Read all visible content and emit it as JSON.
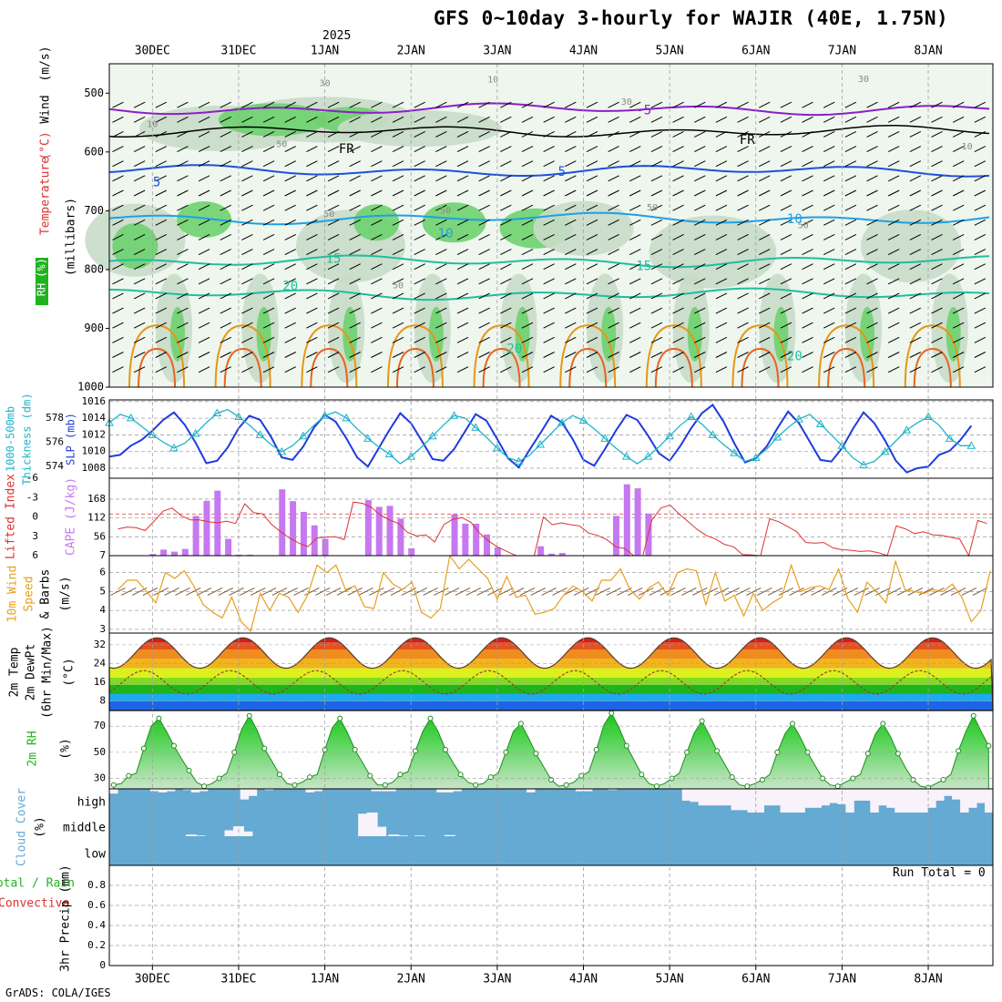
{
  "header": {
    "title": "GFS 0~10day 3-hourly for WAJIR (40E, 1.75N)",
    "year_label": "2025",
    "credit": "GrADS: COLA/IGES",
    "run_total": "Run Total = 0"
  },
  "colors": {
    "frame": "#000000",
    "grid": "#a0a0a0",
    "slp": "#1e3cdc",
    "thickness": "#1eb4c8",
    "cape": "#c678f0",
    "lifted": "#dc3232",
    "wind10m": "#e6a01e",
    "barbs": "#7a5a3c",
    "rh": "#1eb41e",
    "cloud": "#64aad2",
    "cloud_empty": "#f8f2fa",
    "temp_purple": "#8c1ec8",
    "temp_black": "#000000",
    "temp_blue": "#1e50dc",
    "temp_lightblue": "#1ea0e6",
    "temp_teal": "#1ebe9e",
    "temp_orange": "#e69614",
    "temp_darkorange": "#e6641e",
    "temp_magenta": "#dc1e8c"
  },
  "chart_data": [
    {
      "type": "contour",
      "panel": "upper-air",
      "y_axis_labels": [
        "Wind",
        "(m/s)",
        "Temperature",
        "(°C)",
        "RH",
        "(%)",
        "(millibars)"
      ],
      "ylim": [
        1000,
        450
      ],
      "yticks": [
        500,
        600,
        700,
        800,
        900,
        1000
      ],
      "temperature_contours": [
        {
          "value": "-5",
          "pressure": 527,
          "color": "purple"
        },
        {
          "value": "FR",
          "pressure": 565,
          "color": "black"
        },
        {
          "value": "5",
          "pressure": 632,
          "color": "blue"
        },
        {
          "value": "10",
          "pressure": 713,
          "color": "lightblue"
        },
        {
          "value": "15",
          "pressure": 786,
          "color": "teal"
        },
        {
          "value": "20",
          "pressure": 842,
          "color": "teal"
        }
      ],
      "contour_labels": [
        {
          "text": "-5",
          "day": 6.2,
          "pressure": 530,
          "color": "purple"
        },
        {
          "text": "FR",
          "day": 2.75,
          "pressure": 596,
          "color": "black"
        },
        {
          "text": "FR",
          "day": 7.4,
          "pressure": 580,
          "color": "black"
        },
        {
          "text": "5",
          "day": 0.55,
          "pressure": 652,
          "color": "blue"
        },
        {
          "text": "5",
          "day": 5.25,
          "pressure": 634,
          "color": "blue"
        },
        {
          "text": "10",
          "day": 3.9,
          "pressure": 740,
          "color": "lightblue"
        },
        {
          "text": "10",
          "day": 7.95,
          "pressure": 715,
          "color": "lightblue"
        },
        {
          "text": "15",
          "day": 2.6,
          "pressure": 782,
          "color": "teal"
        },
        {
          "text": "15",
          "day": 6.2,
          "pressure": 795,
          "color": "teal"
        },
        {
          "text": "20",
          "day": 2.1,
          "pressure": 829,
          "color": "teal"
        },
        {
          "text": "20",
          "day": 4.7,
          "pressure": 936,
          "color": "teal"
        },
        {
          "text": "20",
          "day": 7.95,
          "pressure": 948,
          "color": "teal"
        }
      ],
      "rh_labels": [
        {
          "text": "30",
          "day": 2.5,
          "pressure": 483
        },
        {
          "text": "10",
          "day": 4.45,
          "pressure": 477
        },
        {
          "text": "30",
          "day": 6.0,
          "pressure": 515
        },
        {
          "text": "30",
          "day": 8.75,
          "pressure": 476
        },
        {
          "text": "10",
          "day": 0.5,
          "pressure": 553
        },
        {
          "text": "10",
          "day": 9.95,
          "pressure": 591
        },
        {
          "text": "50",
          "day": 2.0,
          "pressure": 587
        },
        {
          "text": "50",
          "day": 2.55,
          "pressure": 706
        },
        {
          "text": "50",
          "day": 3.9,
          "pressure": 700
        },
        {
          "text": "50",
          "day": 6.3,
          "pressure": 695
        },
        {
          "text": "50",
          "day": 8.05,
          "pressure": 725
        },
        {
          "text": "50",
          "day": 3.35,
          "pressure": 827
        }
      ]
    },
    {
      "type": "line",
      "panel": "slp-thickness",
      "ylabel_left": "1000-500mb Thickness (dm)",
      "ylabel_right": "SLP (mb)",
      "slp_ticks": [
        1008,
        1010,
        1012,
        1014,
        1016
      ],
      "thickness_ticks": [
        574,
        576,
        578
      ],
      "slp_ylim": [
        1006.8,
        1016.2
      ],
      "x_start_day": 0.5,
      "x_step_days": 0.125,
      "series": [
        {
          "name": "SLP",
          "values": [
            1009.4,
            1009.6,
            1010.7,
            1011.4,
            1012.5,
            1013.8,
            1014.7,
            1013.2,
            1011.1,
            1008.6,
            1008.9,
            1010.5,
            1012.8,
            1014.3,
            1013.8,
            1011.8,
            1009.3,
            1009.0,
            1010.6,
            1012.9,
            1014.4,
            1013.6,
            1011.6,
            1009.3,
            1008.2,
            1010.4,
            1012.6,
            1014.6,
            1013.4,
            1011.3,
            1009.1,
            1008.9,
            1010.3,
            1012.4,
            1014.5,
            1013.7,
            1011.5,
            1009.2,
            1008.1,
            1010.2,
            1012.2,
            1014.3,
            1013.5,
            1011.5,
            1009.0,
            1008.3,
            1010.3,
            1012.5,
            1014.4,
            1013.8,
            1011.9,
            1009.8,
            1008.9,
            1010.7,
            1012.8,
            1014.6,
            1015.6,
            1013.6,
            1011.0,
            1008.7,
            1009.2,
            1010.6,
            1012.8,
            1014.8,
            1013.4,
            1011.2,
            1009.0,
            1008.8,
            1010.4,
            1012.7,
            1014.7,
            1013.4,
            1011.3,
            1008.9,
            1007.5,
            1008.0,
            1008.2,
            1009.6,
            1010.1,
            1011.4,
            1013.1
          ]
        },
        {
          "name": "Thickness",
          "values": [
            577.6,
            578.3,
            578.0,
            577.3,
            576.6,
            576.0,
            575.5,
            575.9,
            576.7,
            577.6,
            578.4,
            578.7,
            578.1,
            577.4,
            576.6,
            575.8,
            575.2,
            575.7,
            576.5,
            577.4,
            578.2,
            578.5,
            578.0,
            577.1,
            576.3,
            575.6,
            575.0,
            574.2,
            574.8,
            575.6,
            576.5,
            577.4,
            578.2,
            578.0,
            577.2,
            576.4,
            575.5,
            574.7,
            574.4,
            574.9,
            575.8,
            576.7,
            577.6,
            578.2,
            577.8,
            577.1,
            576.3,
            575.5,
            574.8,
            574.2,
            574.8,
            575.6,
            576.5,
            577.4,
            578.1,
            577.5,
            576.6,
            575.8,
            575.1,
            574.4,
            574.7,
            575.4,
            576.4,
            577.2,
            577.9,
            578.3,
            577.5,
            576.6,
            575.7,
            574.7,
            574.1,
            574.4,
            575.2,
            576.1,
            577.0,
            577.6,
            578.1,
            577.4,
            576.3,
            575.7,
            575.7
          ]
        }
      ]
    },
    {
      "type": "bar",
      "panel": "cape-lifted-index",
      "ylabel_left": "Lifted Index",
      "ylabel_right": "CAPE (J/kg)",
      "cape_ticks": [
        56,
        112,
        168
      ],
      "lifted_ticks": [
        "-6",
        "-3",
        "0",
        "3",
        "6"
      ],
      "cape_ylim": [
        0,
        230
      ],
      "lifted_ylim": [
        -6,
        7
      ],
      "lifted_tick_right": "7",
      "cape_bars": [
        {
          "day": 0.5,
          "value": 5
        },
        {
          "day": 0.625,
          "value": 18
        },
        {
          "day": 0.75,
          "value": 12
        },
        {
          "day": 0.875,
          "value": 20
        },
        {
          "day": 1.0,
          "value": 118
        },
        {
          "day": 1.125,
          "value": 163
        },
        {
          "day": 1.25,
          "value": 193
        },
        {
          "day": 1.375,
          "value": 50
        },
        {
          "day": 1.5,
          "value": 3
        },
        {
          "day": 1.625,
          "value": 3
        },
        {
          "day": 2.0,
          "value": 197
        },
        {
          "day": 2.125,
          "value": 162
        },
        {
          "day": 2.25,
          "value": 130
        },
        {
          "day": 2.375,
          "value": 90
        },
        {
          "day": 2.5,
          "value": 50
        },
        {
          "day": 3.0,
          "value": 165
        },
        {
          "day": 3.125,
          "value": 145
        },
        {
          "day": 3.25,
          "value": 148
        },
        {
          "day": 3.375,
          "value": 110
        },
        {
          "day": 3.5,
          "value": 22
        },
        {
          "day": 4.0,
          "value": 123
        },
        {
          "day": 4.125,
          "value": 95
        },
        {
          "day": 4.25,
          "value": 95
        },
        {
          "day": 4.375,
          "value": 63
        },
        {
          "day": 4.5,
          "value": 25
        },
        {
          "day": 5.0,
          "value": 28
        },
        {
          "day": 5.125,
          "value": 6
        },
        {
          "day": 5.25,
          "value": 8
        },
        {
          "day": 5.875,
          "value": 118
        },
        {
          "day": 6.0,
          "value": 212
        },
        {
          "day": 6.125,
          "value": 200
        },
        {
          "day": 6.25,
          "value": 125
        }
      ],
      "lifted_index": [
        2.5,
        2.2,
        2.3,
        2.8,
        1.2,
        -0.5,
        -1.0,
        0.3,
        1.0,
        1.0,
        1.3,
        1.5,
        1.2,
        1.6,
        -1.7,
        -0.2,
        0.0,
        1.8,
        3.0,
        4.1,
        4.9,
        5.5,
        4.0,
        3.9,
        3.8,
        4.3,
        -2.0,
        -1.8,
        -1.1,
        0.2,
        1.0,
        1.6,
        3.1,
        3.7,
        3.5,
        4.7,
        1.8,
        0.9,
        0.6,
        1.4,
        3.3,
        4.6,
        5.6,
        6.3,
        7.2,
        7.9,
        9.5,
        0.5,
        1.8,
        1.5,
        1.8,
        2.0,
        3.2,
        3.6,
        4.3,
        5.5,
        5.8,
        7.9,
        9.0,
        1.0,
        -1.0,
        -1.5,
        0.0,
        1.3,
        2.6,
        3.6,
        4.2,
        5.1,
        5.5,
        6.8,
        6.9,
        9.2,
        0.8,
        1.3,
        2.1,
        3.0,
        4.8,
        4.9,
        4.8,
        5.7,
        6.0,
        6.1,
        6.3,
        6.2,
        6.5,
        9.0,
        2.0,
        2.5,
        3.3,
        3.0,
        3.5,
        3.6,
        3.9,
        4.2,
        9.1,
        1.1,
        1.6
      ]
    },
    {
      "type": "line",
      "panel": "wind-10m",
      "ylabel": "10m Wind Speed & Barbs (m/s)",
      "yticks": [
        3,
        4,
        5,
        6
      ],
      "ylim": [
        2.8,
        6.9
      ],
      "values": [
        5.1,
        5.6,
        5.6,
        5.0,
        4.4,
        6.0,
        5.7,
        6.1,
        5.3,
        4.3,
        3.9,
        3.6,
        4.7,
        3.4,
        2.9,
        4.9,
        4.0,
        4.9,
        4.7,
        3.9,
        4.8,
        6.4,
        6.0,
        6.4,
        5.1,
        5.3,
        4.2,
        4.1,
        6.0,
        5.4,
        5.1,
        5.5,
        3.9,
        3.6,
        4.1,
        6.9,
        6.2,
        6.7,
        6.2,
        5.7,
        4.6,
        5.8,
        4.7,
        4.8,
        3.8,
        3.9,
        4.1,
        4.8,
        5.3,
        5.0,
        4.5,
        5.6,
        5.6,
        6.2,
        5.1,
        4.6,
        5.2,
        5.5,
        4.8,
        6.0,
        6.2,
        6.1,
        4.3,
        6.0,
        4.5,
        4.8,
        3.7,
        4.9,
        4.0,
        4.4,
        4.7,
        6.4,
        5.0,
        5.2,
        5.3,
        5.1,
        6.2,
        4.6,
        3.9,
        5.5,
        5.0,
        4.4,
        6.6,
        5.1,
        5.0,
        4.9,
        5.1,
        5.0,
        5.4,
        4.7,
        3.4,
        4.0,
        6.1
      ]
    },
    {
      "type": "area",
      "panel": "2m-temp",
      "ylabel": "2m Temp 2m DewPt (6hr Min/Max) (°C)",
      "yticks": [
        8,
        16,
        24,
        32
      ],
      "ylim": [
        4,
        37
      ],
      "temp_band_colors": [
        "#1e64e6",
        "#1eaaf0",
        "#1eb41e",
        "#82dc1e",
        "#dcf01e",
        "#f0b41e",
        "#f08c1e",
        "#e6501e",
        "#d21e1e"
      ],
      "temp_band_edges": [
        4,
        8,
        11,
        15,
        18,
        22,
        26,
        30,
        33,
        36
      ],
      "temp_daily_min": 22,
      "temp_daily_max": 35,
      "dewpoint_min": 11,
      "dewpoint_max": 21
    },
    {
      "type": "area",
      "panel": "2m-rh",
      "ylabel": "2m RH (%)",
      "yticks": [
        30,
        50,
        70
      ],
      "ylim": [
        22,
        82
      ],
      "values": [
        25,
        26,
        32,
        34,
        53,
        70,
        76,
        66,
        55,
        45,
        36,
        27,
        24,
        26,
        30,
        34,
        50,
        68,
        78,
        67,
        53,
        43,
        33,
        26,
        25,
        27,
        31,
        33,
        52,
        69,
        76,
        65,
        52,
        42,
        32,
        25,
        25,
        27,
        33,
        35,
        51,
        66,
        76,
        66,
        52,
        42,
        33,
        27,
        25,
        26,
        31,
        34,
        50,
        66,
        72,
        61,
        49,
        39,
        29,
        24,
        25,
        27,
        32,
        35,
        52,
        71,
        80,
        69,
        55,
        44,
        33,
        26,
        24,
        26,
        30,
        34,
        50,
        65,
        74,
        63,
        51,
        41,
        31,
        25,
        24,
        26,
        29,
        33,
        50,
        64,
        72,
        62,
        50,
        40,
        30,
        25,
        24,
        27,
        30,
        33,
        49,
        64,
        72,
        62,
        49,
        38,
        29,
        24,
        23,
        26,
        29,
        33,
        51,
        66,
        78,
        66,
        55
      ]
    },
    {
      "type": "bar",
      "panel": "cloud-cover",
      "ylabel": "Cloud Cover (%)",
      "layers": [
        "high",
        "middle",
        "low"
      ],
      "high_cover": [
        0.8,
        1.0,
        1.0,
        1.0,
        1.0,
        0.9,
        0.85,
        0.9,
        1.0,
        0.95,
        0.85,
        0.9,
        1.0,
        1.0,
        1.0,
        1.0,
        0.55,
        0.7,
        1.0,
        0.95,
        1.0,
        1.0,
        1.0,
        1.0,
        0.85,
        0.9,
        1.0,
        1.0,
        1.0,
        1.0,
        1.0,
        1.0,
        0.9,
        0.9,
        0.9,
        1.0,
        1.0,
        1.0,
        1.0,
        1.0,
        0.85,
        0.85,
        0.9,
        1.0,
        1.0,
        1.0,
        1.0,
        1.0,
        1.0,
        1.0,
        1.0,
        0.85,
        1.0,
        1.0,
        1.0,
        1.0,
        1.0,
        0.9,
        0.9,
        1.0,
        1.0,
        0.95,
        1.0,
        1.0,
        1.0,
        1.0,
        1.0,
        1.0,
        1.0,
        1.0,
        0.5,
        0.45,
        0.3,
        0.3,
        0.3,
        0.3,
        0.1,
        0.1,
        0.0,
        0.0,
        0.3,
        0.3,
        0.0,
        0.0,
        0.0,
        0.2,
        0.2,
        0.3,
        0.4,
        0.35,
        0.0,
        0.5,
        0.5,
        0.0,
        0.3,
        0.2,
        0.0,
        0.0,
        0.0,
        0.0,
        0.2,
        0.5,
        0.7,
        0.55,
        0.0,
        0.2,
        0.4,
        0.0
      ],
      "middle_gaps": [
        {
          "day": 0.95,
          "frac": 0.07
        },
        {
          "day": 1.05,
          "frac": 0.03
        },
        {
          "day": 1.4,
          "frac": 0.25
        },
        {
          "day": 1.5,
          "frac": 0.42
        },
        {
          "day": 1.6,
          "frac": 0.2
        },
        {
          "day": 2.95,
          "frac": 0.95
        },
        {
          "day": 3.05,
          "frac": 1.0
        },
        {
          "day": 3.15,
          "frac": 0.4
        },
        {
          "day": 3.3,
          "frac": 0.07
        },
        {
          "day": 3.4,
          "frac": 0.03
        },
        {
          "day": 3.6,
          "frac": 0.03
        },
        {
          "day": 3.95,
          "frac": 0.05
        }
      ]
    },
    {
      "type": "bar",
      "panel": "precip",
      "ylabel": "3hr Precip (mm)",
      "ylabel_left": "Total / Rain Convective",
      "yticks": [
        0,
        0.2,
        0.4,
        0.6,
        0.8
      ],
      "ylim": [
        0,
        1.0
      ],
      "values": []
    }
  ],
  "x_axis": {
    "days": [
      "30DEC",
      "31DEC",
      "1JAN",
      "2JAN",
      "3JAN",
      "4JAN",
      "5JAN",
      "6JAN",
      "7JAN",
      "8JAN"
    ],
    "xlim_days": [
      0,
      10.25
    ]
  },
  "labels": {
    "wind_label": "Wind",
    "wind_unit": "(m/s)",
    "temperature_label": "Temperature",
    "temperature_unit": "(°C)",
    "rh_label": "RH",
    "rh_unit": "(%)",
    "pressure_unit": "(millibars)",
    "thickness_label": "1000-500mb",
    "thickness_unit": "Thickness (dm)",
    "slp_label": "SLP (mb)",
    "lifted_label": "Lifted Index",
    "cape_label": "CAPE (J/kg)",
    "wind10_label_1": "10m Wind",
    "wind10_label_2": "Speed",
    "wind10_label_3": "& Barbs",
    "wind10_unit": "(m/s)",
    "temp2m_1": "2m Temp",
    "temp2m_2": "2m DewPt",
    "temp2m_3": "(6hr Min/Max)",
    "temp2m_unit": "(°C)",
    "rh2m_label": "2m RH",
    "rh2m_unit": "(%)",
    "cloud_label": "Cloud Cover",
    "cloud_unit": "(%)",
    "cloud_high": "high",
    "cloud_middle": "middle",
    "cloud_low": "low",
    "precip_left_1": "Total / Rain",
    "precip_left_2": "Convective",
    "precip_label": "3hr Precip (mm)"
  }
}
